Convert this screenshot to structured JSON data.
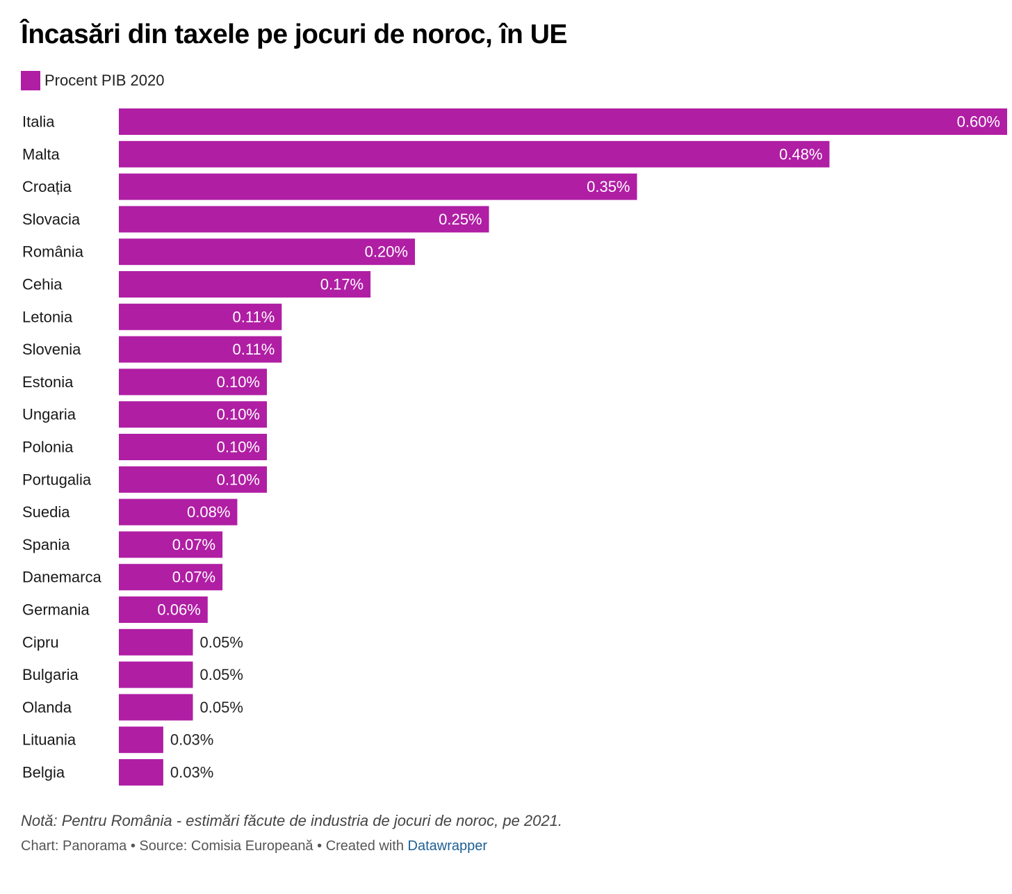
{
  "title": "Încasări din taxele pe jocuri de noroc, în UE",
  "legend": {
    "label": "Procent PIB 2020",
    "color": "#b01ea4"
  },
  "note": "Notă: Pentru România - estimări făcute de industria de jocuri de noroc, pe 2021.",
  "footer": {
    "chart_by": "Chart: Panorama",
    "separator": " • ",
    "source": "Source: Comisia Europeană",
    "created_with": "Created with ",
    "tool": "Datawrapper"
  },
  "chart_data": {
    "type": "bar",
    "orientation": "horizontal",
    "title": "Încasări din taxele pe jocuri de noroc, în UE",
    "categories": [
      "Italia",
      "Malta",
      "Croația",
      "Slovacia",
      "România",
      "Cehia",
      "Letonia",
      "Slovenia",
      "Estonia",
      "Ungaria",
      "Polonia",
      "Portugalia",
      "Suedia",
      "Spania",
      "Danemarca",
      "Germania",
      "Cipru",
      "Bulgaria",
      "Olanda",
      "Lituania",
      "Belgia"
    ],
    "series": [
      {
        "name": "Procent PIB 2020",
        "values": [
          0.6,
          0.48,
          0.35,
          0.25,
          0.2,
          0.17,
          0.11,
          0.11,
          0.1,
          0.1,
          0.1,
          0.1,
          0.08,
          0.07,
          0.07,
          0.06,
          0.05,
          0.05,
          0.05,
          0.03,
          0.03
        ],
        "labels": [
          "0.60%",
          "0.48%",
          "0.35%",
          "0.25%",
          "0.20%",
          "0.17%",
          "0.11%",
          "0.11%",
          "0.10%",
          "0.10%",
          "0.10%",
          "0.10%",
          "0.08%",
          "0.07%",
          "0.07%",
          "0.06%",
          "0.05%",
          "0.05%",
          "0.05%",
          "0.03%",
          "0.03%"
        ]
      }
    ],
    "xlim": [
      0,
      0.6
    ],
    "grid": false,
    "legend_position": "top-left",
    "colors": {
      "bar": "#b01ea4",
      "label_inside": "#ffffff",
      "label_outside": "#222222"
    }
  }
}
